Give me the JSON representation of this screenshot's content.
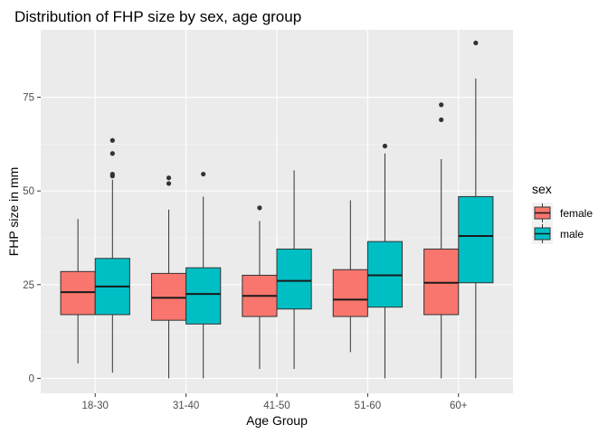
{
  "chart_data": {
    "type": "boxplot",
    "title": "Distribution of FHP size by sex, age group",
    "xlabel": "Age Group",
    "ylabel": "FHP size in mm",
    "categories": [
      "18-30",
      "31-40",
      "41-50",
      "51-60",
      "60+"
    ],
    "ylim": [
      -4,
      93
    ],
    "yticks": [
      0,
      25,
      50,
      75
    ],
    "grid": true,
    "legend": {
      "title": "sex",
      "position": "right"
    },
    "series": [
      {
        "name": "female",
        "color": "#F8766D",
        "boxes": [
          {
            "min": 4,
            "q1": 17,
            "median": 23,
            "q3": 28.5,
            "max": 42.5,
            "outliers": []
          },
          {
            "min": 0,
            "q1": 15.5,
            "median": 21.5,
            "q3": 28,
            "max": 45,
            "outliers": [
              52,
              53.5
            ]
          },
          {
            "min": 2.5,
            "q1": 16.5,
            "median": 22,
            "q3": 27.5,
            "max": 42,
            "outliers": [
              45.5
            ]
          },
          {
            "min": 7,
            "q1": 16.5,
            "median": 21,
            "q3": 29,
            "max": 47.5,
            "outliers": []
          },
          {
            "min": 0,
            "q1": 17,
            "median": 25.5,
            "q3": 34.5,
            "max": 58.5,
            "outliers": [
              69,
              73
            ]
          }
        ]
      },
      {
        "name": "male",
        "color": "#00BFC4",
        "boxes": [
          {
            "min": 1.5,
            "q1": 17,
            "median": 24.5,
            "q3": 32,
            "max": 53,
            "outliers": [
              54,
              54.5,
              60,
              63.5
            ]
          },
          {
            "min": 0,
            "q1": 14.5,
            "median": 22.5,
            "q3": 29.5,
            "max": 48.5,
            "outliers": [
              54.5
            ]
          },
          {
            "min": 2.5,
            "q1": 18.5,
            "median": 26,
            "q3": 34.5,
            "max": 55.5,
            "outliers": []
          },
          {
            "min": 0,
            "q1": 19,
            "median": 27.5,
            "q3": 36.5,
            "max": 60,
            "outliers": [
              62
            ]
          },
          {
            "min": 0,
            "q1": 25.5,
            "median": 38,
            "q3": 48.5,
            "max": 80,
            "outliers": [
              89.5
            ]
          }
        ]
      }
    ]
  }
}
